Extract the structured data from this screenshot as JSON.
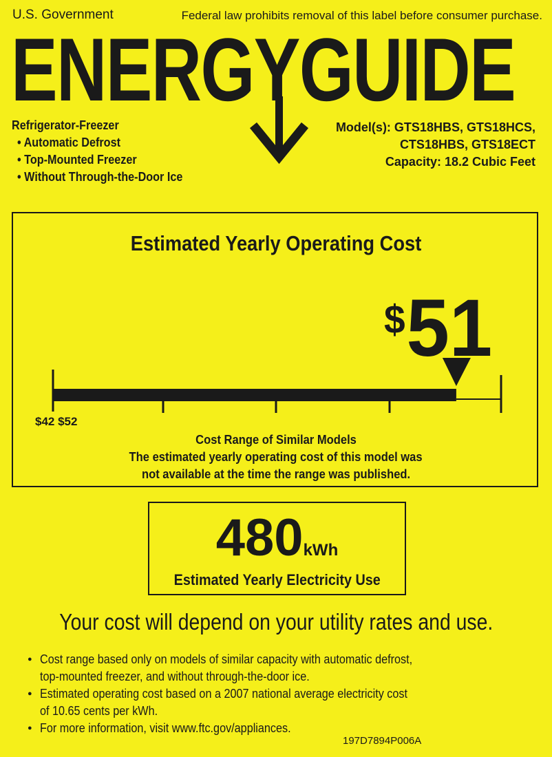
{
  "header": {
    "issuer": "U.S. Government",
    "notice": "Federal law prohibits removal of this label before consumer purchase.",
    "logo_text": "ENERGYGUIDE"
  },
  "product": {
    "type": "Refrigerator-Freezer",
    "features": [
      "• Automatic Defrost",
      "• Top-Mounted Freezer",
      "• Without Through-the-Door Ice"
    ],
    "models_line1": "Model(s): GTS18HBS, GTS18HCS,",
    "models_line2": "CTS18HBS, GTS18ECT",
    "capacity": "Capacity: 18.2 Cubic Feet"
  },
  "cost": {
    "title": "Estimated Yearly Operating Cost",
    "currency": "$",
    "value": "51",
    "range_label": "$42 $52",
    "bar_fill_fraction": 0.9,
    "range_title": "Cost Range of Similar Models",
    "range_note_line1": "The estimated yearly operating cost of this model was",
    "range_note_line2": "not available at the time the range was published."
  },
  "electricity": {
    "value": "480",
    "unit": "kWh",
    "label": "Estimated Yearly Electricity Use"
  },
  "depend_text": "Your cost will depend on your utility rates and use.",
  "notes": [
    {
      "line1": "Cost range based only on models of similar capacity with automatic defrost,",
      "line2": "top-mounted freezer, and without through-the-door ice."
    },
    {
      "line1": "Estimated operating cost based on a 2007 national average electricity cost",
      "line2": "of 10.65 cents per kWh."
    },
    {
      "line1": "For more information, visit www.ftc.gov/appliances.",
      "line2": ""
    }
  ],
  "label_code": "197D7894P006A",
  "colors": {
    "background": "#f5ef1a",
    "ink": "#1a1a1a"
  }
}
